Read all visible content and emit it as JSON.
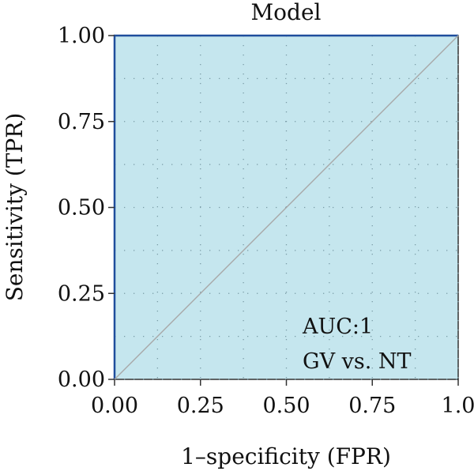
{
  "chart_data": {
    "type": "line",
    "title": "Model",
    "xlabel": "1–specificity (FPR)",
    "ylabel": "Sensitivity (TPR)",
    "xlim": [
      0,
      1
    ],
    "ylim": [
      0,
      1
    ],
    "x_ticks": [
      0,
      0.25,
      0.5,
      0.75,
      1
    ],
    "x_tick_labels": [
      "0.00",
      "0.25",
      "0.50",
      "0.75",
      "1.0"
    ],
    "y_ticks": [
      0,
      0.25,
      0.5,
      0.75,
      1
    ],
    "y_tick_labels": [
      "0.00",
      "0.25",
      "0.50",
      "0.75",
      "1.00"
    ],
    "grid": true,
    "grid_minor": true,
    "series": [
      {
        "x": [
          0,
          0,
          1
        ],
        "y": [
          0,
          1,
          1
        ],
        "color": "#1f4e9c"
      },
      {
        "x": [
          0,
          1
        ],
        "y": [
          0,
          1
        ],
        "color": "#a8a8a8"
      }
    ],
    "annotations": [
      "AUC:1",
      "GV vs. NT"
    ],
    "colors": {
      "panel_background": "#c5e6ee",
      "grid": "#7a9ca6",
      "diagonal": "#a8a8a8"
    }
  }
}
